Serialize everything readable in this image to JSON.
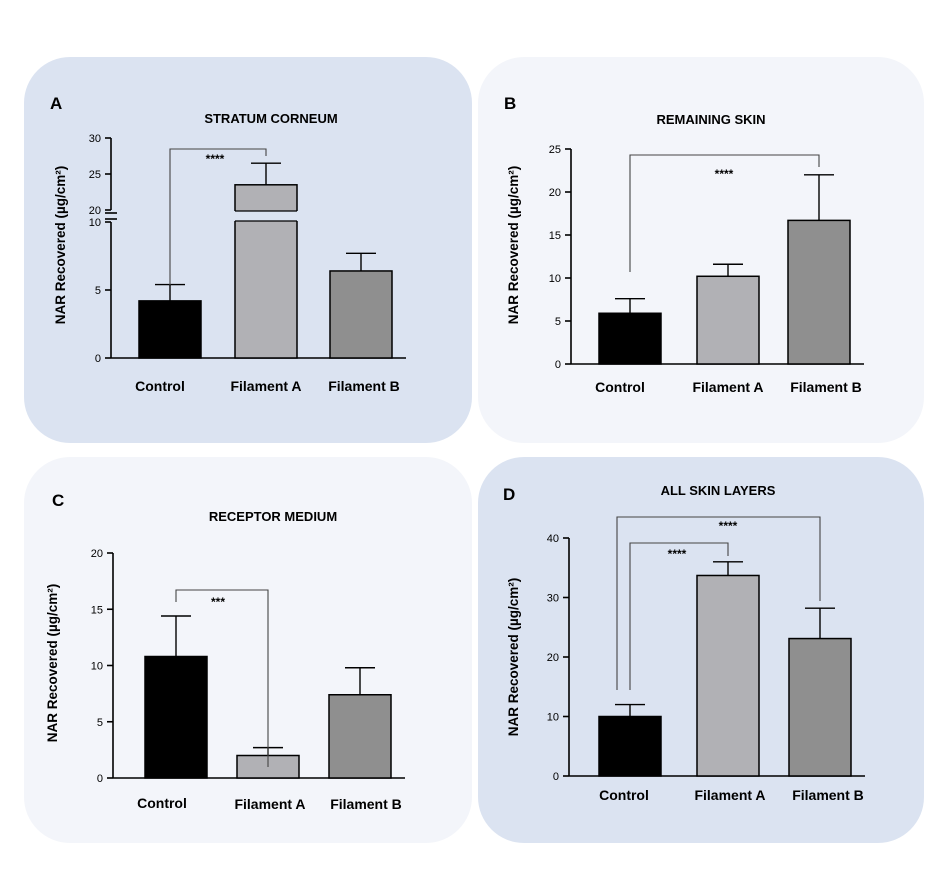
{
  "chart_data": [
    {
      "type": "bar",
      "panel": "A",
      "title": "STRATUM CORNEUM",
      "ylabel": "NAR Recovered (µg/cm²)",
      "categories": [
        "Control",
        "Filament A",
        "Filament B"
      ],
      "values": [
        4.2,
        23.5,
        6.4
      ],
      "errors": [
        1.2,
        3.0,
        1.3
      ],
      "colors": [
        "#000000",
        "#b1b1b5",
        "#8f8f8f"
      ],
      "axis_break": {
        "lower_range": [
          0,
          10
        ],
        "upper_range": [
          20,
          30
        ]
      },
      "lower_ticks": [
        0,
        5,
        10
      ],
      "upper_ticks": [
        20,
        25,
        30
      ],
      "significance": [
        {
          "from": "Control",
          "to": "Filament A",
          "label": "****"
        }
      ]
    },
    {
      "type": "bar",
      "panel": "B",
      "title": "REMAINING SKIN",
      "ylabel": "NAR Recovered (µg/cm²)",
      "categories": [
        "Control",
        "Filament A",
        "Filament B"
      ],
      "values": [
        5.9,
        10.2,
        16.7
      ],
      "errors": [
        1.7,
        1.4,
        5.3
      ],
      "colors": [
        "#000000",
        "#b1b1b5",
        "#8f8f8f"
      ],
      "ylim": [
        0,
        25
      ],
      "yticks": [
        0,
        5,
        10,
        15,
        20,
        25
      ],
      "significance": [
        {
          "from": "Control",
          "to": "Filament B",
          "label": "****"
        }
      ]
    },
    {
      "type": "bar",
      "panel": "C",
      "title": "RECEPTOR MEDIUM",
      "ylabel": "NAR Recovered (µg/cm²)",
      "categories": [
        "Control",
        "Filament A",
        "Filament B"
      ],
      "values": [
        10.8,
        2.0,
        7.4
      ],
      "errors": [
        3.6,
        0.7,
        2.4
      ],
      "colors": [
        "#000000",
        "#b1b1b5",
        "#8f8f8f"
      ],
      "ylim": [
        0,
        20
      ],
      "yticks": [
        0,
        5,
        10,
        15,
        20
      ],
      "significance": [
        {
          "from": "Control",
          "to": "Filament A",
          "label": "***"
        }
      ]
    },
    {
      "type": "bar",
      "panel": "D",
      "title": "ALL SKIN LAYERS",
      "ylabel": "NAR Recovered (µg/cm²)",
      "categories": [
        "Control",
        "Filament A",
        "Filament B"
      ],
      "values": [
        10.0,
        33.7,
        23.1
      ],
      "errors": [
        2.0,
        2.3,
        5.1
      ],
      "colors": [
        "#000000",
        "#b1b1b5",
        "#8f8f8f"
      ],
      "ylim": [
        0,
        40
      ],
      "yticks": [
        0,
        10,
        20,
        30,
        40
      ],
      "significance": [
        {
          "from": "Control",
          "to": "Filament A",
          "label": "****"
        },
        {
          "from": "Control",
          "to": "Filament B",
          "label": "****"
        }
      ]
    }
  ]
}
